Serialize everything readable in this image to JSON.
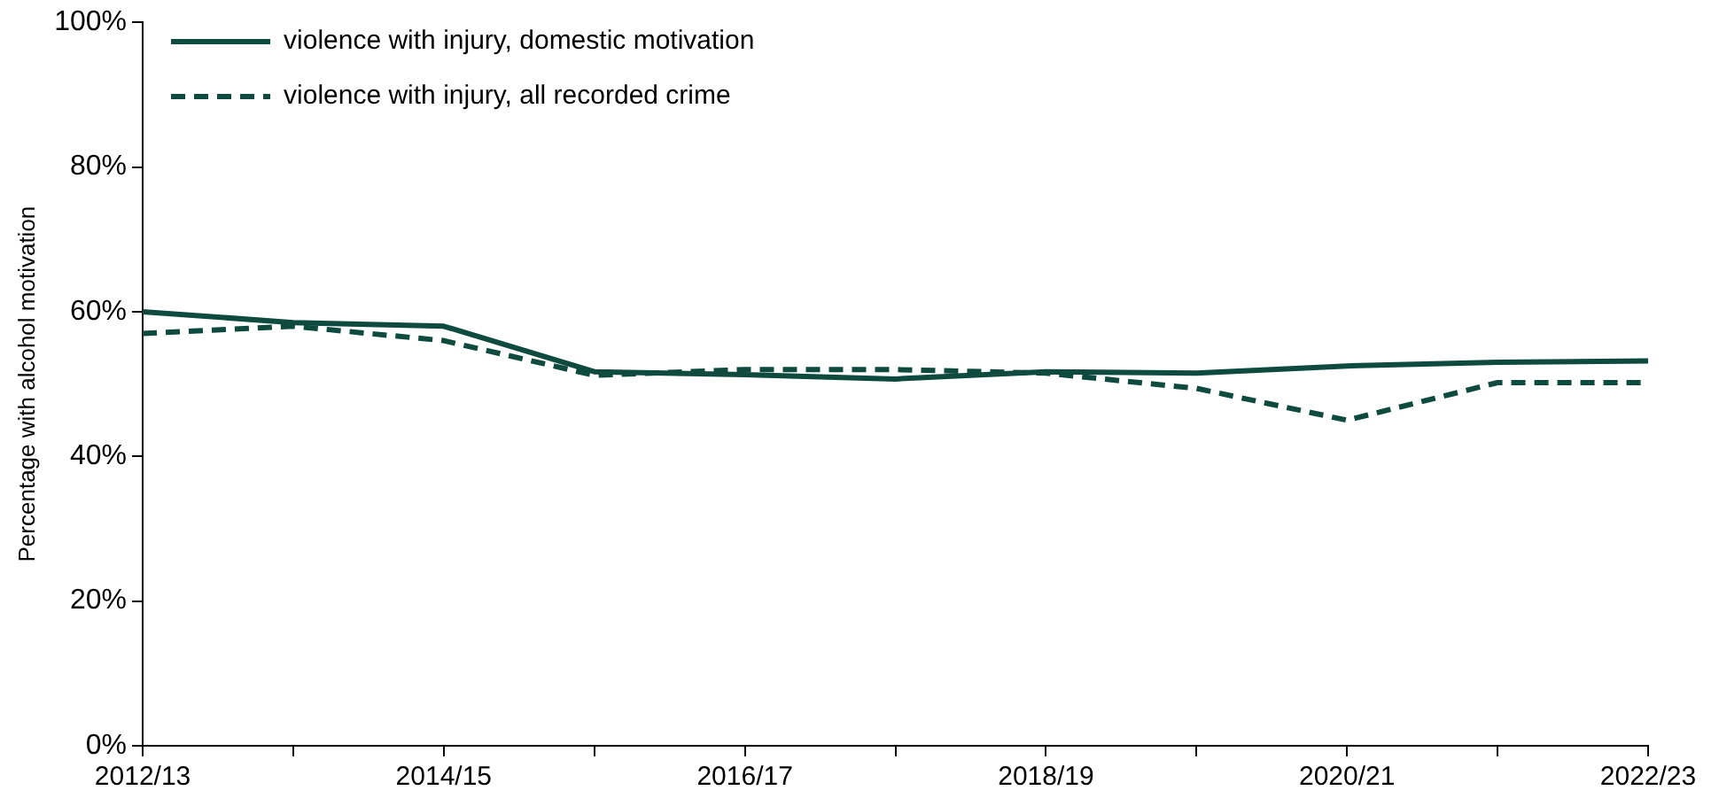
{
  "chart_data": {
    "type": "line",
    "ylabel": "Percentage with alcohol motivation",
    "categories": [
      "2012/13",
      null,
      "2014/15",
      null,
      "2016/17",
      null,
      "2018/19",
      null,
      "2020/21",
      null,
      "2022/23"
    ],
    "series": [
      {
        "name": "violence with injury, domestic motivation",
        "color": "#0e4a3e",
        "line_style": "solid",
        "values": [
          60,
          58.5,
          58,
          51.7,
          51.3,
          50.7,
          51.7,
          51.5,
          52.5,
          53,
          53.2
        ]
      },
      {
        "name": "violence with injury, all recorded crime",
        "color": "#0e4a3e",
        "line_style": "dashed",
        "values": [
          57,
          58,
          56,
          51.2,
          52,
          52,
          51.5,
          49.4,
          45,
          50.2,
          50.2
        ]
      }
    ],
    "ylim": [
      0,
      100
    ],
    "yticks": [
      {
        "value": 0,
        "label": "0%"
      },
      {
        "value": 20,
        "label": "20%"
      },
      {
        "value": 40,
        "label": "40%"
      },
      {
        "value": 60,
        "label": "60%"
      },
      {
        "value": 80,
        "label": "80%"
      },
      {
        "value": 100,
        "label": "100%"
      }
    ],
    "grid": false,
    "legend": "top left",
    "marker": "none"
  }
}
